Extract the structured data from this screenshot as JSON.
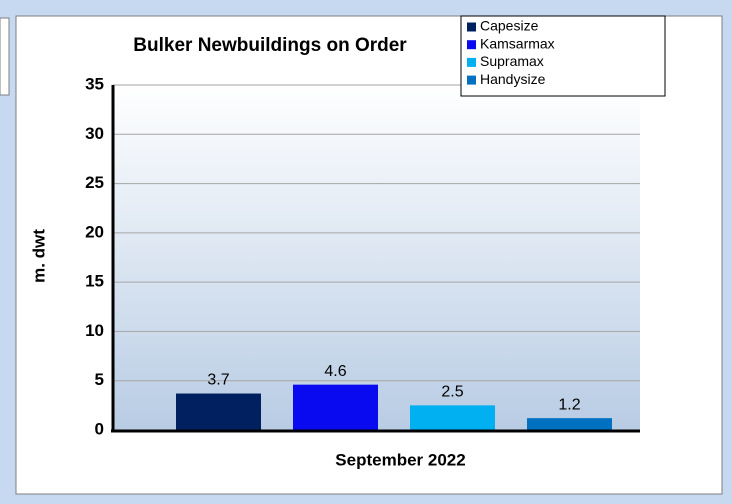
{
  "chart_data": {
    "type": "bar",
    "title": "Bulker Newbuildings on Order",
    "y_label": "m. dwt",
    "categories": [
      "September 2022"
    ],
    "series": [
      {
        "name": "Capesize",
        "color": "#002060",
        "values": [
          3.7
        ]
      },
      {
        "name": "Kamsarmax",
        "color": "#0a0af0",
        "values": [
          4.6
        ]
      },
      {
        "name": "Supramax",
        "color": "#00b0f0",
        "values": [
          2.5
        ]
      },
      {
        "name": "Handysize",
        "color": "#0070c0",
        "values": [
          1.2
        ]
      }
    ],
    "ylim": [
      0,
      35
    ],
    "yticks": [
      0,
      5,
      10,
      15,
      20,
      25,
      30,
      35
    ],
    "grid": true,
    "legend": "upper right"
  }
}
